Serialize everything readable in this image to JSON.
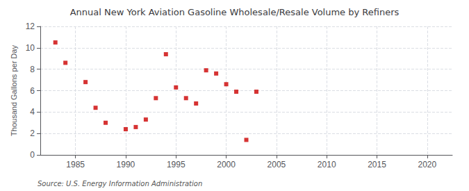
{
  "chart_data": {
    "type": "scatter",
    "title": "Annual New York Aviation Gasoline Wholesale/Resale Volume by Refiners",
    "ylabel": "Thousand Gallons per Day",
    "annotation": "Source: U.S. Energy Information Administration",
    "x": [
      1983,
      1984,
      1986,
      1987,
      1988,
      1990,
      1991,
      1992,
      1993,
      1994,
      1995,
      1996,
      1997,
      1998,
      1999,
      2000,
      2001,
      2002,
      2003
    ],
    "values": [
      10.5,
      8.6,
      6.8,
      4.4,
      3.0,
      2.4,
      2.6,
      3.3,
      5.3,
      9.4,
      6.3,
      5.3,
      4.8,
      7.9,
      7.6,
      6.6,
      5.9,
      1.4,
      5.9
    ],
    "color": "#cc0000",
    "marker": "square",
    "xlim": [
      1981.5,
      2022.5
    ],
    "ylim": [
      0,
      12
    ],
    "xticks": [
      1985,
      1990,
      1995,
      2000,
      2005,
      2010,
      2015,
      2020
    ],
    "yticks": [
      0,
      2,
      4,
      6,
      8,
      10,
      12
    ],
    "grid": true
  }
}
